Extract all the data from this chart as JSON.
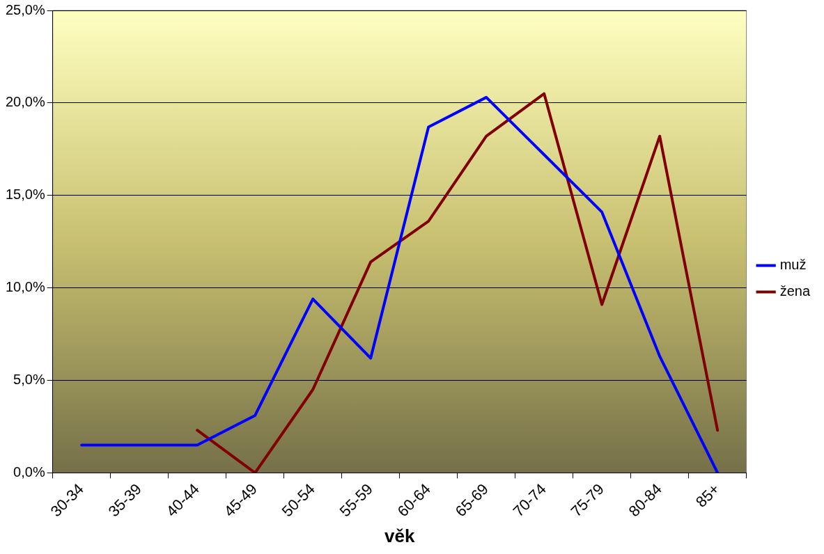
{
  "chart_data": {
    "type": "line",
    "xlabel": "věk",
    "categories": [
      "30-34",
      "35-39",
      "40-44",
      "45-49",
      "50-54",
      "55-59",
      "60-64",
      "65-69",
      "70-74",
      "75-79",
      "80-84",
      "85+"
    ],
    "series": [
      {
        "name": "muž",
        "color": "#0000ff",
        "values": [
          1.5,
          1.5,
          1.5,
          3.1,
          9.4,
          6.2,
          18.7,
          20.3,
          17.2,
          14.1,
          6.3,
          0
        ]
      },
      {
        "name": "žena",
        "color": "#800000",
        "values": [
          null,
          null,
          2.3,
          0,
          4.5,
          11.4,
          13.6,
          18.2,
          20.5,
          9.1,
          18.2,
          2.3
        ]
      }
    ],
    "ylim": [
      0,
      25
    ],
    "yticks": [
      {
        "value": 0,
        "label": "0,0%"
      },
      {
        "value": 5,
        "label": "5,0%"
      },
      {
        "value": 10,
        "label": "10,0%"
      },
      {
        "value": 15,
        "label": "15,0%"
      },
      {
        "value": 20,
        "label": "20,0%"
      },
      {
        "value": 25,
        "label": "25,0%"
      }
    ],
    "grid": "y",
    "legend": "right",
    "marker": "none",
    "line_style": "solid"
  }
}
